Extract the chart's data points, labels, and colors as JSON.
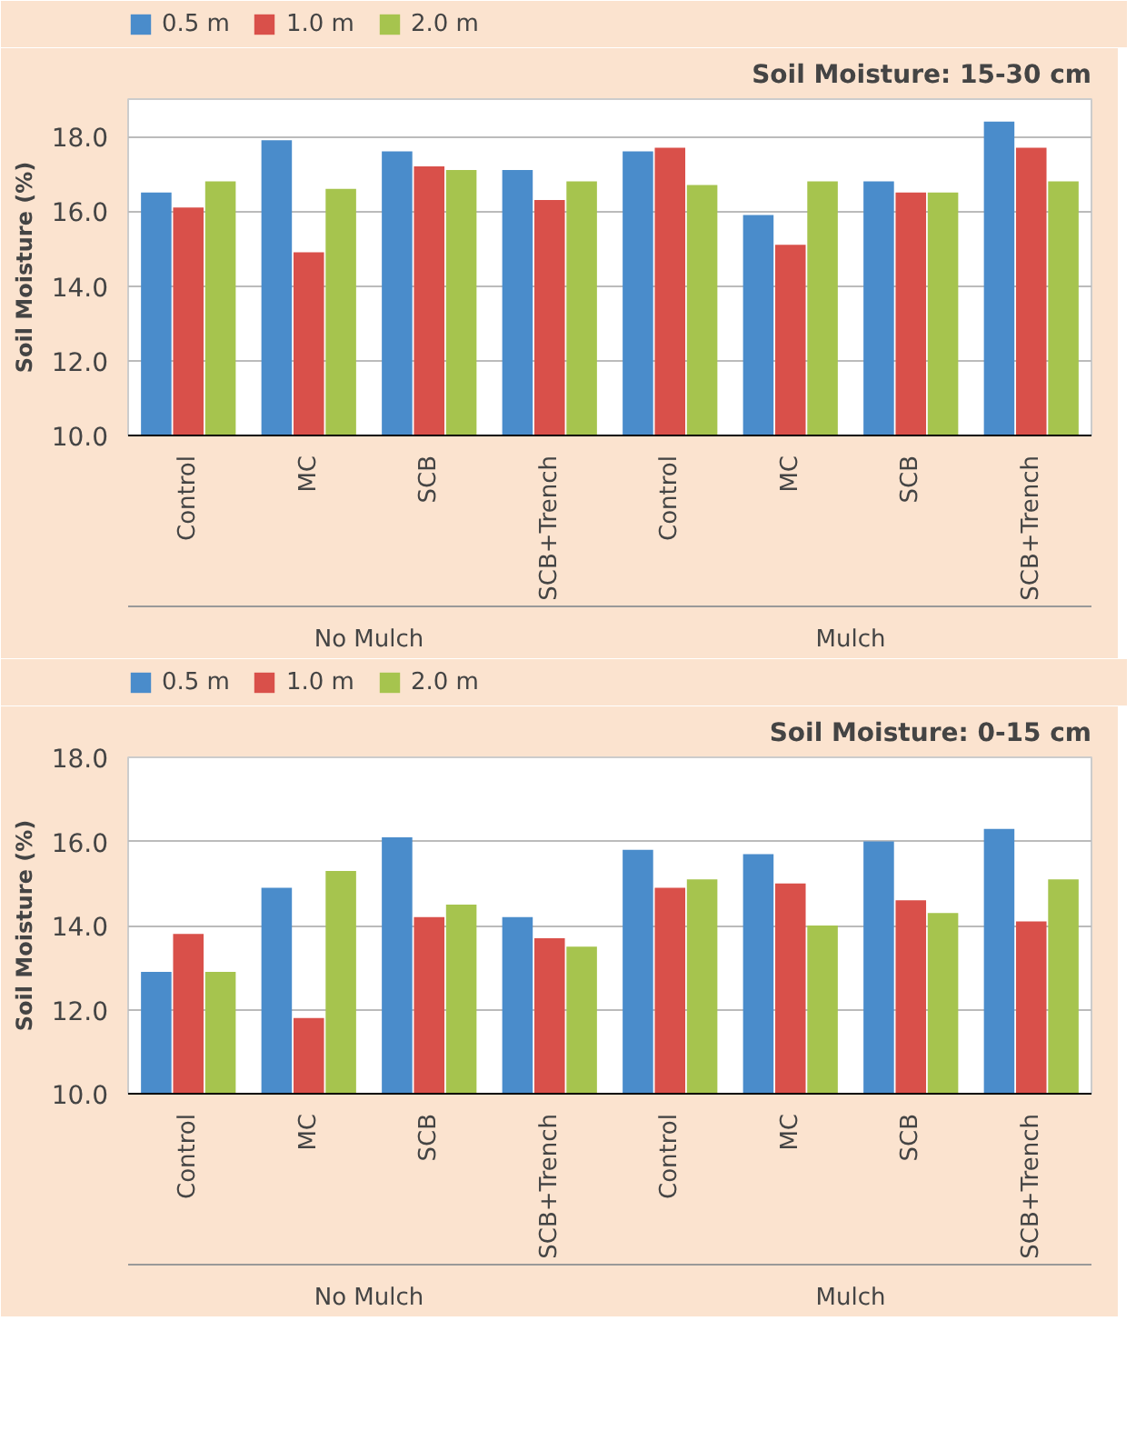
{
  "chart_data": [
    {
      "type": "bar",
      "title": "Soil Moisture: 15-30 cm",
      "ylabel": "Soil Moisture (%)",
      "categories": [
        "Control",
        "MC",
        "SCB",
        "SCB+Trench",
        "Control",
        "MC",
        "SCB",
        "SCB+Trench"
      ],
      "annotations": [
        "No Mulch",
        "Mulch"
      ],
      "series": [
        {
          "name": "0.5 m",
          "color": "#4a8ccb",
          "values": [
            16.5,
            17.9,
            17.6,
            17.1,
            17.6,
            15.9,
            16.8,
            18.4
          ]
        },
        {
          "name": "1.0 m",
          "color": "#d9504a",
          "values": [
            16.1,
            14.9,
            17.2,
            16.3,
            17.7,
            15.1,
            16.5,
            17.7
          ]
        },
        {
          "name": "2.0 m",
          "color": "#a6c44e",
          "values": [
            16.8,
            16.6,
            17.1,
            16.8,
            16.7,
            16.8,
            16.5,
            16.8
          ]
        }
      ],
      "ylim": [
        10,
        19
      ],
      "yticks": [
        {
          "value": 10,
          "label": "10.0"
        },
        {
          "value": 12,
          "label": "12.0"
        },
        {
          "value": 14,
          "label": "14.0"
        },
        {
          "value": 16,
          "label": "16.0"
        },
        {
          "value": 18,
          "label": "18.0"
        }
      ],
      "grid": "y",
      "legend": "top left"
    },
    {
      "type": "bar",
      "title": "Soil Moisture: 0-15 cm",
      "ylabel": "Soil Moisture (%)",
      "categories": [
        "Control",
        "MC",
        "SCB",
        "SCB+Trench",
        "Control",
        "MC",
        "SCB",
        "SCB+Trench"
      ],
      "annotations": [
        "No Mulch",
        "Mulch"
      ],
      "series": [
        {
          "name": "0.5 m",
          "color": "#4a8ccb",
          "values": [
            12.9,
            14.9,
            16.1,
            14.2,
            15.8,
            15.7,
            16.0,
            16.3
          ]
        },
        {
          "name": "1.0 m",
          "color": "#d9504a",
          "values": [
            13.8,
            11.8,
            14.2,
            13.7,
            14.9,
            15.0,
            14.6,
            14.1
          ]
        },
        {
          "name": "2.0 m",
          "color": "#a6c44e",
          "values": [
            12.9,
            15.3,
            14.5,
            13.5,
            15.1,
            14.0,
            14.3,
            15.1
          ]
        }
      ],
      "ylim": [
        10,
        18
      ],
      "yticks": [
        {
          "value": 10,
          "label": "10.0"
        },
        {
          "value": 12,
          "label": "12.0"
        },
        {
          "value": 14,
          "label": "14.0"
        },
        {
          "value": 16,
          "label": "16.0"
        },
        {
          "value": 18,
          "label": "18.0"
        }
      ],
      "grid": "y",
      "legend": "top left"
    }
  ]
}
